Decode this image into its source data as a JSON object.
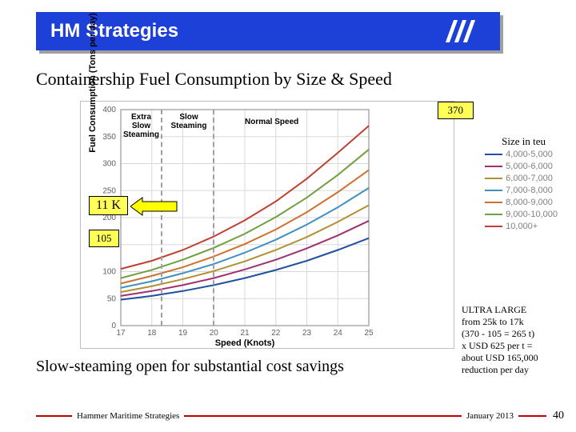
{
  "header": {
    "title": "HM Strategies"
  },
  "slide_title": "Containership Fuel Consumption by Size & Speed",
  "subtitle": "Slow-steaming open for substantial cost savings",
  "chart": {
    "type": "line",
    "xlabel": "Speed (Knots)",
    "ylabel": "Fuel Consumption (Tons per day)",
    "xlim": [
      17,
      25
    ],
    "xtick_step": 1,
    "ylim": [
      0,
      400
    ],
    "ytick_step": 50,
    "xticks": [
      17,
      18,
      19,
      20,
      21,
      22,
      23,
      24,
      25
    ],
    "yticks": [
      0,
      50,
      100,
      150,
      200,
      250,
      300,
      350,
      400
    ],
    "grid_color": "#d8d8d8",
    "axis_color": "#808080",
    "background_color": "#ffffff",
    "label_fontsize": 11,
    "tick_fontsize": 10,
    "speed_zones": {
      "extra_slow": "Extra Slow Steaming",
      "slow": "Slow Steaming",
      "normal": "Normal Speed"
    },
    "series": [
      {
        "name": "4,000-5,000",
        "color": "#2050a0",
        "values": [
          {
            "x": 17,
            "y": 48
          },
          {
            "x": 18,
            "y": 55
          },
          {
            "x": 19,
            "y": 64
          },
          {
            "x": 20,
            "y": 75
          },
          {
            "x": 21,
            "y": 88
          },
          {
            "x": 22,
            "y": 103
          },
          {
            "x": 23,
            "y": 120
          },
          {
            "x": 24,
            "y": 140
          },
          {
            "x": 25,
            "y": 162
          }
        ]
      },
      {
        "name": "5,000-6,000",
        "color": "#a03070",
        "values": [
          {
            "x": 17,
            "y": 55
          },
          {
            "x": 18,
            "y": 64
          },
          {
            "x": 19,
            "y": 75
          },
          {
            "x": 20,
            "y": 88
          },
          {
            "x": 21,
            "y": 104
          },
          {
            "x": 22,
            "y": 122
          },
          {
            "x": 23,
            "y": 143
          },
          {
            "x": 24,
            "y": 167
          },
          {
            "x": 25,
            "y": 194
          }
        ]
      },
      {
        "name": "6,000-7,000",
        "color": "#b09030",
        "values": [
          {
            "x": 17,
            "y": 62
          },
          {
            "x": 18,
            "y": 73
          },
          {
            "x": 19,
            "y": 86
          },
          {
            "x": 20,
            "y": 101
          },
          {
            "x": 21,
            "y": 119
          },
          {
            "x": 22,
            "y": 140
          },
          {
            "x": 23,
            "y": 164
          },
          {
            "x": 24,
            "y": 192
          },
          {
            "x": 25,
            "y": 223
          }
        ]
      },
      {
        "name": "7,000-8,000",
        "color": "#4090c0",
        "values": [
          {
            "x": 17,
            "y": 70
          },
          {
            "x": 18,
            "y": 82
          },
          {
            "x": 19,
            "y": 97
          },
          {
            "x": 20,
            "y": 114
          },
          {
            "x": 21,
            "y": 135
          },
          {
            "x": 22,
            "y": 159
          },
          {
            "x": 23,
            "y": 187
          },
          {
            "x": 24,
            "y": 219
          },
          {
            "x": 25,
            "y": 255
          }
        ]
      },
      {
        "name": "8,000-9,000",
        "color": "#d07030",
        "values": [
          {
            "x": 17,
            "y": 78
          },
          {
            "x": 18,
            "y": 92
          },
          {
            "x": 19,
            "y": 108
          },
          {
            "x": 20,
            "y": 128
          },
          {
            "x": 21,
            "y": 151
          },
          {
            "x": 22,
            "y": 178
          },
          {
            "x": 23,
            "y": 210
          },
          {
            "x": 24,
            "y": 247
          },
          {
            "x": 25,
            "y": 288
          }
        ]
      },
      {
        "name": "9,000-10,000",
        "color": "#70a040",
        "values": [
          {
            "x": 17,
            "y": 88
          },
          {
            "x": 18,
            "y": 103
          },
          {
            "x": 19,
            "y": 122
          },
          {
            "x": 20,
            "y": 144
          },
          {
            "x": 21,
            "y": 170
          },
          {
            "x": 22,
            "y": 201
          },
          {
            "x": 23,
            "y": 237
          },
          {
            "x": 24,
            "y": 279
          },
          {
            "x": 25,
            "y": 326
          }
        ]
      },
      {
        "name": "10,000+",
        "color": "#c04030",
        "values": [
          {
            "x": 17,
            "y": 105
          },
          {
            "x": 18,
            "y": 120
          },
          {
            "x": 19,
            "y": 140
          },
          {
            "x": 20,
            "y": 165
          },
          {
            "x": 21,
            "y": 195
          },
          {
            "x": 22,
            "y": 230
          },
          {
            "x": 23,
            "y": 272
          },
          {
            "x": 24,
            "y": 320
          },
          {
            "x": 25,
            "y": 370
          }
        ]
      }
    ],
    "legend_title": "Size in teu"
  },
  "callouts": {
    "c370": "370",
    "c11k": "11 K",
    "c105": "105"
  },
  "note": {
    "l1": "ULTRA LARGE",
    "l2": "from 25k to 17k",
    "l3": "(370 - 105 = 265 t)",
    "l4": "x USD 625 per t =",
    "l5": "about USD 165,000",
    "l6": "reduction per day"
  },
  "footer": {
    "left": "Hammer Maritime Strategies",
    "right": "January 2013",
    "page": "40"
  },
  "styling": {
    "header_bg": "#1c40d8",
    "accent_red": "#c00000",
    "callout_bg": "#ffff57",
    "title_fontsize": 22,
    "subtitle_fontsize": 20,
    "header_fontsize": 24
  }
}
